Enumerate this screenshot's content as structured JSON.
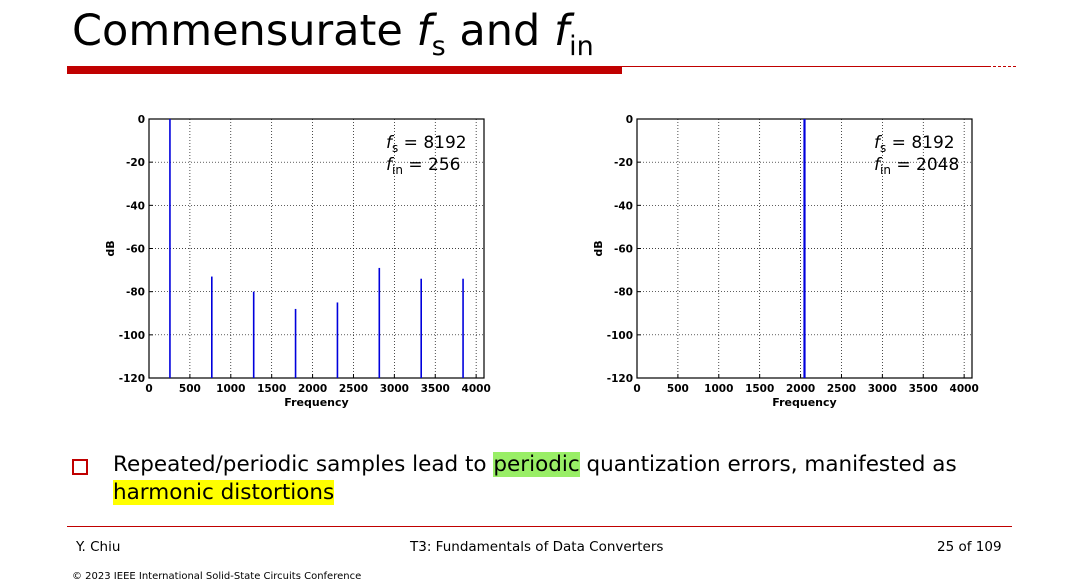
{
  "slide": {
    "title_prefix": "Commensurate ",
    "title_f": "f",
    "title_sub1": "s",
    "title_and": " and ",
    "title_sub2": "in"
  },
  "bullet": {
    "text_before": "Repeated/periodic samples lead to ",
    "highlight_green": "periodic",
    "text_middle": " quantization errors, manifested as ",
    "highlight_yellow": "harmonic distortions"
  },
  "footer": {
    "author": "Y. Chiu",
    "course": "T3: Fundamentals of Data Converters",
    "page": "25 of 109",
    "copyright": "© 2023 IEEE International Solid-State Circuits Conference"
  },
  "colors": {
    "accent_red": "#c00000",
    "stem_blue": "#0000dd",
    "highlight_green": "#99ee66",
    "highlight_yellow": "#ffff00"
  },
  "chart_data": [
    {
      "type": "bar",
      "xlabel": "Frequency",
      "ylabel": "dB",
      "xlim": [
        0,
        4096
      ],
      "ylim": [
        -120,
        0
      ],
      "xticks": [
        0,
        500,
        1000,
        1500,
        2000,
        2500,
        3000,
        3500,
        4000
      ],
      "yticks": [
        0,
        -20,
        -40,
        -60,
        -80,
        -100,
        -120
      ],
      "grid": true,
      "annotation": {
        "f": "f",
        "sub1": "s",
        "val1": "= 8192",
        "sub2": "in",
        "val2": "= 256"
      },
      "x": [
        256,
        768,
        1280,
        1792,
        2304,
        2816,
        3328,
        3840
      ],
      "values": [
        0,
        -73,
        -80,
        -88,
        -85,
        -69,
        -74,
        -74
      ],
      "floor": -120
    },
    {
      "type": "bar",
      "xlabel": "Frequency",
      "ylabel": "dB",
      "xlim": [
        0,
        4096
      ],
      "ylim": [
        -120,
        0
      ],
      "xticks": [
        0,
        500,
        1000,
        1500,
        2000,
        2500,
        3000,
        3500,
        4000
      ],
      "yticks": [
        0,
        -20,
        -40,
        -60,
        -80,
        -100,
        -120
      ],
      "grid": true,
      "annotation": {
        "f": "f",
        "sub1": "s",
        "val1": "= 8192",
        "sub2": "in",
        "val2": "= 2048"
      },
      "x": [
        2048
      ],
      "values": [
        0
      ],
      "floor": -120
    }
  ]
}
